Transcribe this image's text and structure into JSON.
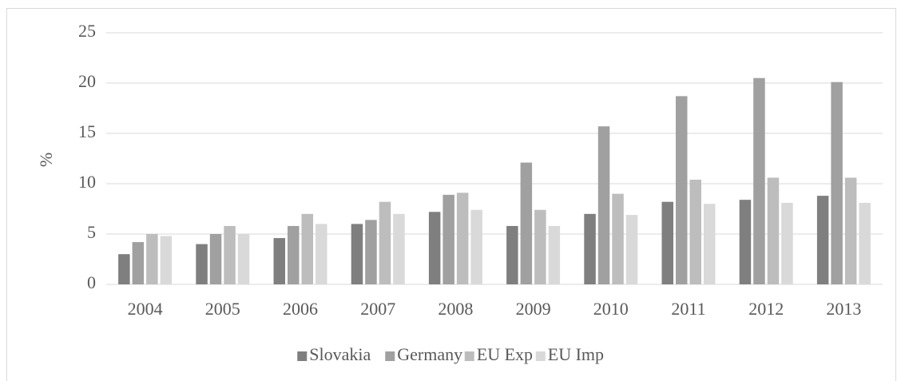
{
  "chart_data": {
    "type": "bar",
    "y_label": "%",
    "categories": [
      "2004",
      "2005",
      "2006",
      "2007",
      "2008",
      "2009",
      "2010",
      "2011",
      "2012",
      "2013"
    ],
    "series": [
      {
        "name": "Slovakia",
        "color": "#7f7f7f",
        "values": [
          3.0,
          4.0,
          4.6,
          6.0,
          7.2,
          5.8,
          7.0,
          8.2,
          8.4,
          8.8
        ]
      },
      {
        "name": "Germany",
        "color": "#a0a0a0",
        "values": [
          4.2,
          5.0,
          5.8,
          6.4,
          8.9,
          12.1,
          15.7,
          18.7,
          20.5,
          20.1
        ]
      },
      {
        "name": "EU Exp",
        "color": "#bdbdbd",
        "values": [
          5.0,
          5.8,
          7.0,
          8.2,
          9.1,
          7.4,
          9.0,
          10.4,
          10.6,
          10.6
        ]
      },
      {
        "name": "EU Imp",
        "color": "#d9d9d9",
        "values": [
          4.8,
          5.0,
          6.0,
          7.0,
          7.4,
          5.8,
          6.9,
          8.0,
          8.1,
          8.1
        ]
      }
    ],
    "ylim": [
      0,
      25
    ],
    "yticks": [
      0,
      5,
      10,
      15,
      20,
      25
    ],
    "grid": true,
    "legend": "bottom"
  }
}
